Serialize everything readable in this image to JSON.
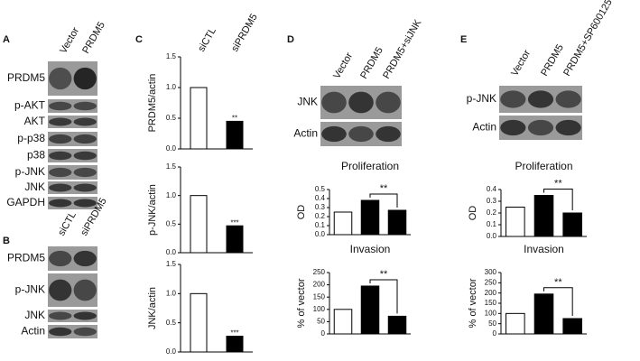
{
  "blots": [
    {
      "panel": "A",
      "lanes": [
        "Vector",
        "PRDM5"
      ],
      "rows": [
        "PRDM5",
        "p-AKT",
        "AKT",
        "p-p38",
        "p38",
        "p-JNK",
        "JNK",
        "GAPDH"
      ]
    },
    {
      "panel": "B",
      "lanes": [
        "siCTL",
        "siPRDM5"
      ],
      "rows": [
        "PRDM5",
        "p-JNK",
        "JNK",
        "Actin"
      ]
    },
    {
      "panel": "D",
      "lanes": [
        "Vector",
        "PRDM5",
        "PRDM5+siJNK"
      ],
      "rows": [
        "JNK",
        "Actin"
      ]
    },
    {
      "panel": "E",
      "lanes": [
        "Vector",
        "PRDM5",
        "PRDM5+SP600125"
      ],
      "rows": [
        "p-JNK",
        "Actin"
      ]
    }
  ],
  "panel_c": {
    "panel": "C",
    "lanes": [
      "siCTL",
      "siPRDM5"
    ]
  },
  "chart_data": [
    {
      "type": "bar",
      "ylabel": "PRDM5/actin",
      "categories": [
        null,
        null
      ],
      "values": [
        1.0,
        0.45
      ],
      "colors": [
        "#ffffff",
        "#000000"
      ],
      "ylim": [
        0,
        1.5
      ],
      "yticks": [
        {
          "value": 0,
          "label": "0.0"
        },
        0.5,
        {
          "value": 1,
          "label": "1.0"
        },
        1.5
      ],
      "annotation": "**"
    },
    {
      "type": "bar",
      "ylabel": "p-JNK/actin",
      "categories": [
        null,
        null
      ],
      "values": [
        1.0,
        0.47
      ],
      "colors": [
        "#ffffff",
        "#000000"
      ],
      "ylim": [
        0,
        1.5
      ],
      "yticks": [
        {
          "value": 0,
          "label": "0.0"
        },
        0.5,
        {
          "value": 1,
          "label": "1.0"
        },
        1.5
      ],
      "annotation": "***"
    },
    {
      "type": "bar",
      "ylabel": "JNK/actin",
      "categories": [
        null,
        null
      ],
      "values": [
        1.0,
        0.27
      ],
      "colors": [
        "#ffffff",
        "#000000"
      ],
      "ylim": [
        0,
        1.5
      ],
      "yticks": [
        {
          "value": 0,
          "label": "0.0"
        },
        0.5,
        {
          "value": 1,
          "label": "1.0"
        },
        1.5
      ],
      "annotation": "***"
    },
    {
      "type": "bar",
      "title": "Proliferation",
      "ylabel": "OD",
      "categories": [
        null,
        null,
        null
      ],
      "values": [
        0.25,
        0.38,
        0.27
      ],
      "colors": [
        "#ffffff",
        "#000000",
        "#000000"
      ],
      "ylim": [
        0,
        0.5
      ],
      "yticks": [
        {
          "value": 0,
          "label": "0.0"
        },
        0.1,
        0.2,
        0.3,
        0.4,
        0.5
      ],
      "annotation": "**"
    },
    {
      "type": "bar",
      "title": "Invasion",
      "ylabel": "% of vector",
      "categories": [
        null,
        null,
        null
      ],
      "values": [
        100,
        195,
        72
      ],
      "colors": [
        "#ffffff",
        "#000000",
        "#000000"
      ],
      "ylim": [
        0,
        250
      ],
      "yticks": [
        0,
        50,
        100,
        150,
        200,
        250
      ],
      "annotation": "**"
    },
    {
      "type": "bar",
      "title": "Proliferation",
      "ylabel": "OD",
      "categories": [
        null,
        null,
        null
      ],
      "values": [
        0.25,
        0.35,
        0.2
      ],
      "colors": [
        "#ffffff",
        "#000000",
        "#000000"
      ],
      "ylim": [
        0,
        0.4
      ],
      "yticks": [
        {
          "value": 0,
          "label": "0.0"
        },
        0.1,
        0.2,
        0.3,
        0.4
      ],
      "annotation": "**"
    },
    {
      "type": "bar",
      "title": "Invasion",
      "ylabel": "% of vector",
      "categories": [
        null,
        null,
        null
      ],
      "values": [
        100,
        195,
        75
      ],
      "colors": [
        "#ffffff",
        "#000000",
        "#000000"
      ],
      "ylim": [
        0,
        300
      ],
      "yticks": [
        0,
        50,
        100,
        150,
        200,
        250,
        300
      ],
      "annotation": "**"
    }
  ]
}
